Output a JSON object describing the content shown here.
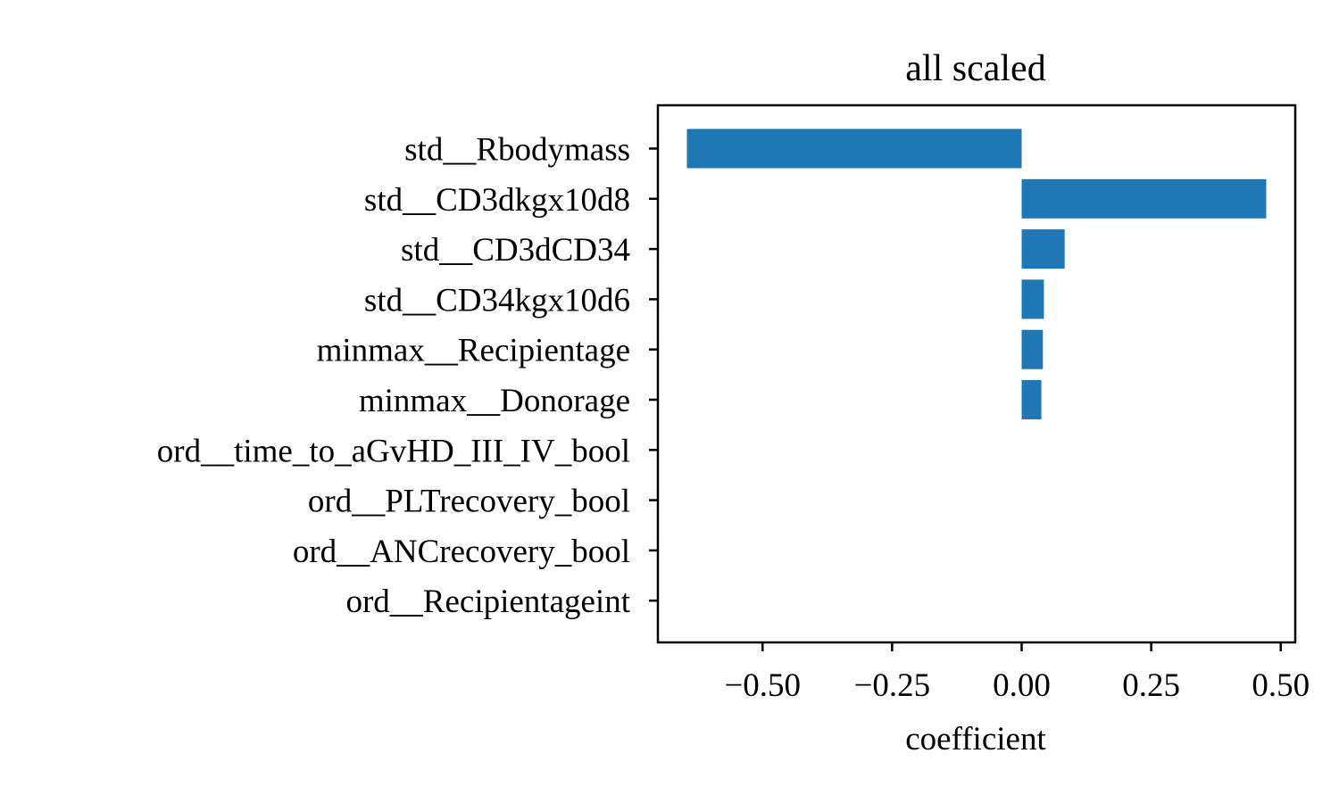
{
  "chart_data": {
    "type": "bar",
    "orientation": "horizontal",
    "title": "all scaled",
    "xlabel": "coefficient",
    "ylabel": "",
    "categories": [
      "std__Rbodymass",
      "std__CD3dkgx10d8",
      "std__CD3dCD34",
      "std__CD34kgx10d6",
      "minmax__Recipientage",
      "minmax__Donorage",
      "ord__time_to_aGvHD_III_IV_bool",
      "ord__PLTrecovery_bool",
      "ord__ANCrecovery_bool",
      "ord__Recipientageint"
    ],
    "values": [
      -0.646,
      0.472,
      0.083,
      0.043,
      0.041,
      0.038,
      0.0,
      0.0,
      0.0,
      0.0
    ],
    "xlim": [
      -0.702,
      0.528
    ],
    "xticks": [
      -0.5,
      -0.25,
      0.0,
      0.25,
      0.5
    ],
    "xtick_labels": [
      "−0.50",
      "−0.25",
      "0.00",
      "0.25",
      "0.50"
    ],
    "bar_color": "#1f77b4",
    "grid": false,
    "legend": "none"
  }
}
